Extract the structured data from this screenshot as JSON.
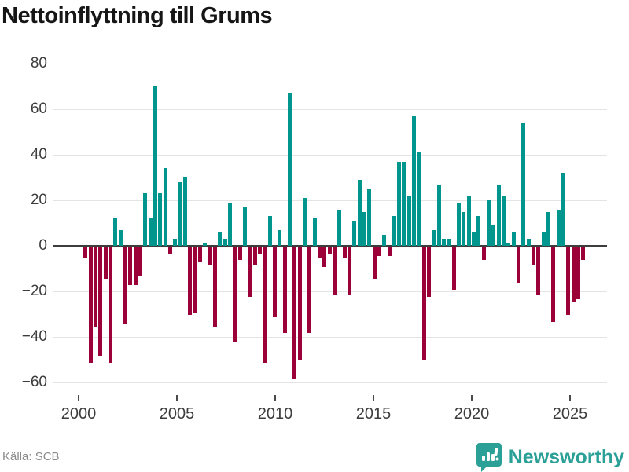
{
  "title": "Nettoinflyttning till Grums",
  "source": "Källa: SCB",
  "brand": {
    "name": "Newsworthy",
    "icon": "newsworthy-bar-chart-bubble-icon"
  },
  "colors": {
    "positive": "#00958d",
    "negative": "#9b0039",
    "brand_teal": "#2aa097",
    "zero_axis": "#3d3d3d",
    "grid": "#e4e4e4",
    "tick_text": "#3c3c3c",
    "title_text": "#161616",
    "source_text": "#8a8a8a"
  },
  "chart_data": {
    "type": "bar",
    "title": "Nettoinflyttning till Grums",
    "xlabel": "",
    "ylabel": "",
    "unit": "quarterly net migration (persons)",
    "first_quarter": "2000-Q2",
    "last_quarter": "2025-Q2",
    "ylim": [
      -65,
      85
    ],
    "grid": true,
    "y_ticks": [
      80,
      60,
      40,
      20,
      0,
      -20,
      -40,
      -60
    ],
    "y_tick_labels": [
      "80",
      "60",
      "40",
      "20",
      "0",
      "−20",
      "−40",
      "−60"
    ],
    "x_ticks": [
      2000,
      2005,
      2010,
      2015,
      2020,
      2025
    ],
    "x_tick_labels": [
      "2000",
      "2005",
      "2010",
      "2015",
      "2020",
      "2025"
    ],
    "series": [
      {
        "name": "Nettoinflyttning",
        "values_by_year": {
          "2000": [
            null,
            -5,
            -51,
            -35
          ],
          "2001": [
            -48,
            -14,
            -51,
            12
          ],
          "2002": [
            7,
            -34,
            -17,
            -17
          ],
          "2003": [
            -13,
            23,
            12,
            70
          ],
          "2004": [
            23,
            34,
            -3,
            3
          ],
          "2005": [
            28,
            30,
            -30,
            -29
          ],
          "2006": [
            -7,
            1,
            -8,
            -35
          ],
          "2007": [
            6,
            3,
            19,
            -42
          ],
          "2008": [
            -6,
            17,
            -22,
            -8
          ],
          "2009": [
            -3,
            -51,
            13,
            -31
          ],
          "2010": [
            7,
            -38,
            67,
            -58
          ],
          "2011": [
            -50,
            21,
            -38,
            12
          ],
          "2012": [
            -5,
            -9,
            -3,
            -21
          ],
          "2013": [
            16,
            -5,
            -21,
            11
          ],
          "2014": [
            29,
            15,
            25,
            -14
          ],
          "2015": [
            -4,
            5,
            -4,
            13
          ],
          "2016": [
            37,
            37,
            22,
            57
          ],
          "2017": [
            41,
            -50,
            -22,
            7
          ],
          "2018": [
            27,
            3,
            3,
            -19
          ],
          "2019": [
            19,
            15,
            22,
            6
          ],
          "2020": [
            13,
            -6,
            20,
            9
          ],
          "2021": [
            27,
            22,
            1,
            6
          ],
          "2022": [
            -16,
            54,
            3,
            -8
          ],
          "2023": [
            -21,
            6,
            15,
            -33
          ],
          "2024": [
            16,
            32,
            -30,
            -24
          ],
          "2025": [
            -23,
            -6
          ]
        }
      }
    ]
  }
}
